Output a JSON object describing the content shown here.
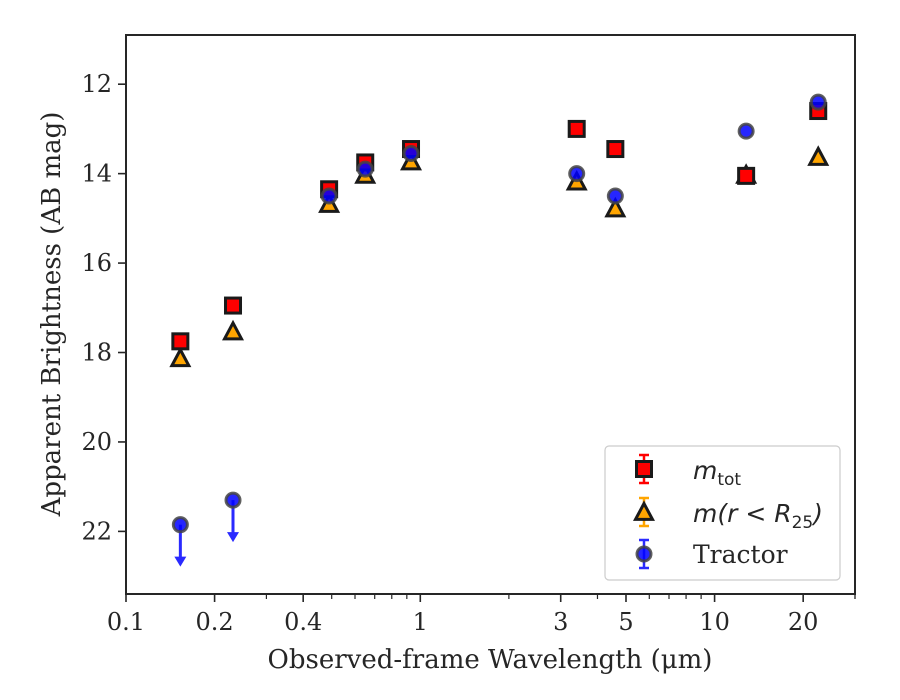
{
  "chart_data": {
    "type": "scatter",
    "title": "",
    "xlabel": "Observed-frame Wavelength (μm)",
    "ylabel": "Apparent Brightness (AB mag)",
    "xscale": "log",
    "yinverted": true,
    "xlim": [
      0.1,
      30
    ],
    "ylim": [
      23.4,
      10.9
    ],
    "xticks": [
      {
        "value": 0.1,
        "label": "0.1"
      },
      {
        "value": 0.2,
        "label": "0.2"
      },
      {
        "value": 0.4,
        "label": "0.4"
      },
      {
        "value": 1,
        "label": "1"
      },
      {
        "value": 3,
        "label": "3"
      },
      {
        "value": 5,
        "label": "5"
      },
      {
        "value": 10,
        "label": "10"
      },
      {
        "value": 20,
        "label": "20"
      }
    ],
    "yticks": [
      {
        "value": 12,
        "label": "12"
      },
      {
        "value": 14,
        "label": "14"
      },
      {
        "value": 16,
        "label": "16"
      },
      {
        "value": 18,
        "label": "18"
      },
      {
        "value": 20,
        "label": "20"
      },
      {
        "value": 22,
        "label": "22"
      }
    ],
    "legend_position": "lower-right",
    "grid": false,
    "series": [
      {
        "name": "m_tot",
        "marker": "square",
        "color": "#ff0000",
        "edgecolor": "#1a1a1a",
        "x": [
          0.153,
          0.231,
          0.49,
          0.65,
          0.93,
          3.4,
          4.6,
          12.8,
          22.5
        ],
        "y": [
          17.75,
          16.95,
          14.35,
          13.75,
          13.45,
          13.0,
          13.45,
          14.05,
          12.6
        ]
      },
      {
        "name": "m(r < R25)",
        "marker": "triangle",
        "color": "#ffa500",
        "edgecolor": "#1a1a1a",
        "x": [
          0.153,
          0.231,
          0.49,
          0.65,
          0.93,
          3.4,
          4.6,
          12.8,
          22.5
        ],
        "y": [
          18.15,
          17.55,
          14.7,
          14.05,
          13.75,
          14.2,
          14.8,
          14.05,
          13.65
        ]
      },
      {
        "name": "Tractor",
        "marker": "circle",
        "color": "#0000ff",
        "edgecolor": "#444444",
        "x": [
          0.153,
          0.231,
          0.49,
          0.65,
          0.93,
          3.4,
          4.6,
          12.8,
          22.5
        ],
        "y": [
          21.85,
          21.3,
          14.5,
          13.9,
          13.55,
          14.0,
          14.5,
          13.05,
          12.4
        ],
        "upper_limits": [
          true,
          true,
          false,
          false,
          false,
          false,
          false,
          false,
          false
        ]
      }
    ],
    "legend": {
      "tot_main": "m",
      "tot_sub": "tot",
      "r25_main": "m(r < R",
      "r25_sub": "25",
      "r25_close": ")",
      "tractor": "Tractor"
    }
  }
}
